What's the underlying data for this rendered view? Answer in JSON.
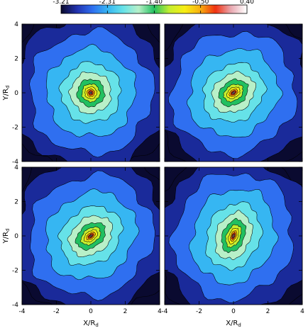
{
  "chart_data": {
    "type": "heatmap",
    "colorbar": {
      "ticks": [
        "-3.21",
        "-2.31",
        "-1.40",
        "-0.50",
        "0.40"
      ],
      "range": [
        -3.21,
        0.4
      ],
      "stops": [
        "#0a0a30",
        "#2233b0",
        "#2f6ff0",
        "#36b6f2",
        "#66e2e8",
        "#b8f0c8",
        "#22c060",
        "#c4ee30",
        "#f7ee14",
        "#f8b010",
        "#f03010",
        "#e8a8b0",
        "#ffffff"
      ]
    },
    "axes": {
      "x_ticks": [
        "-4",
        "-2",
        "0",
        "2",
        "4"
      ],
      "y_ticks": [
        "-4",
        "-2",
        "0",
        "2",
        "4"
      ],
      "x_range": [
        -4,
        4
      ],
      "y_range": [
        -4,
        4
      ],
      "xlabel": "X/R",
      "xlabel_sub": "d",
      "ylabel": "Y/R",
      "ylabel_sub": "d"
    },
    "panels": [
      {
        "position": "top-left",
        "bar_angle_deg": 0,
        "elongation": 1.0
      },
      {
        "position": "top-right",
        "bar_angle_deg": 35,
        "elongation": 1.9
      },
      {
        "position": "bottom-left",
        "bar_angle_deg": 38,
        "elongation": 2.3
      },
      {
        "position": "bottom-right",
        "bar_angle_deg": 68,
        "elongation": 2.7
      }
    ]
  }
}
